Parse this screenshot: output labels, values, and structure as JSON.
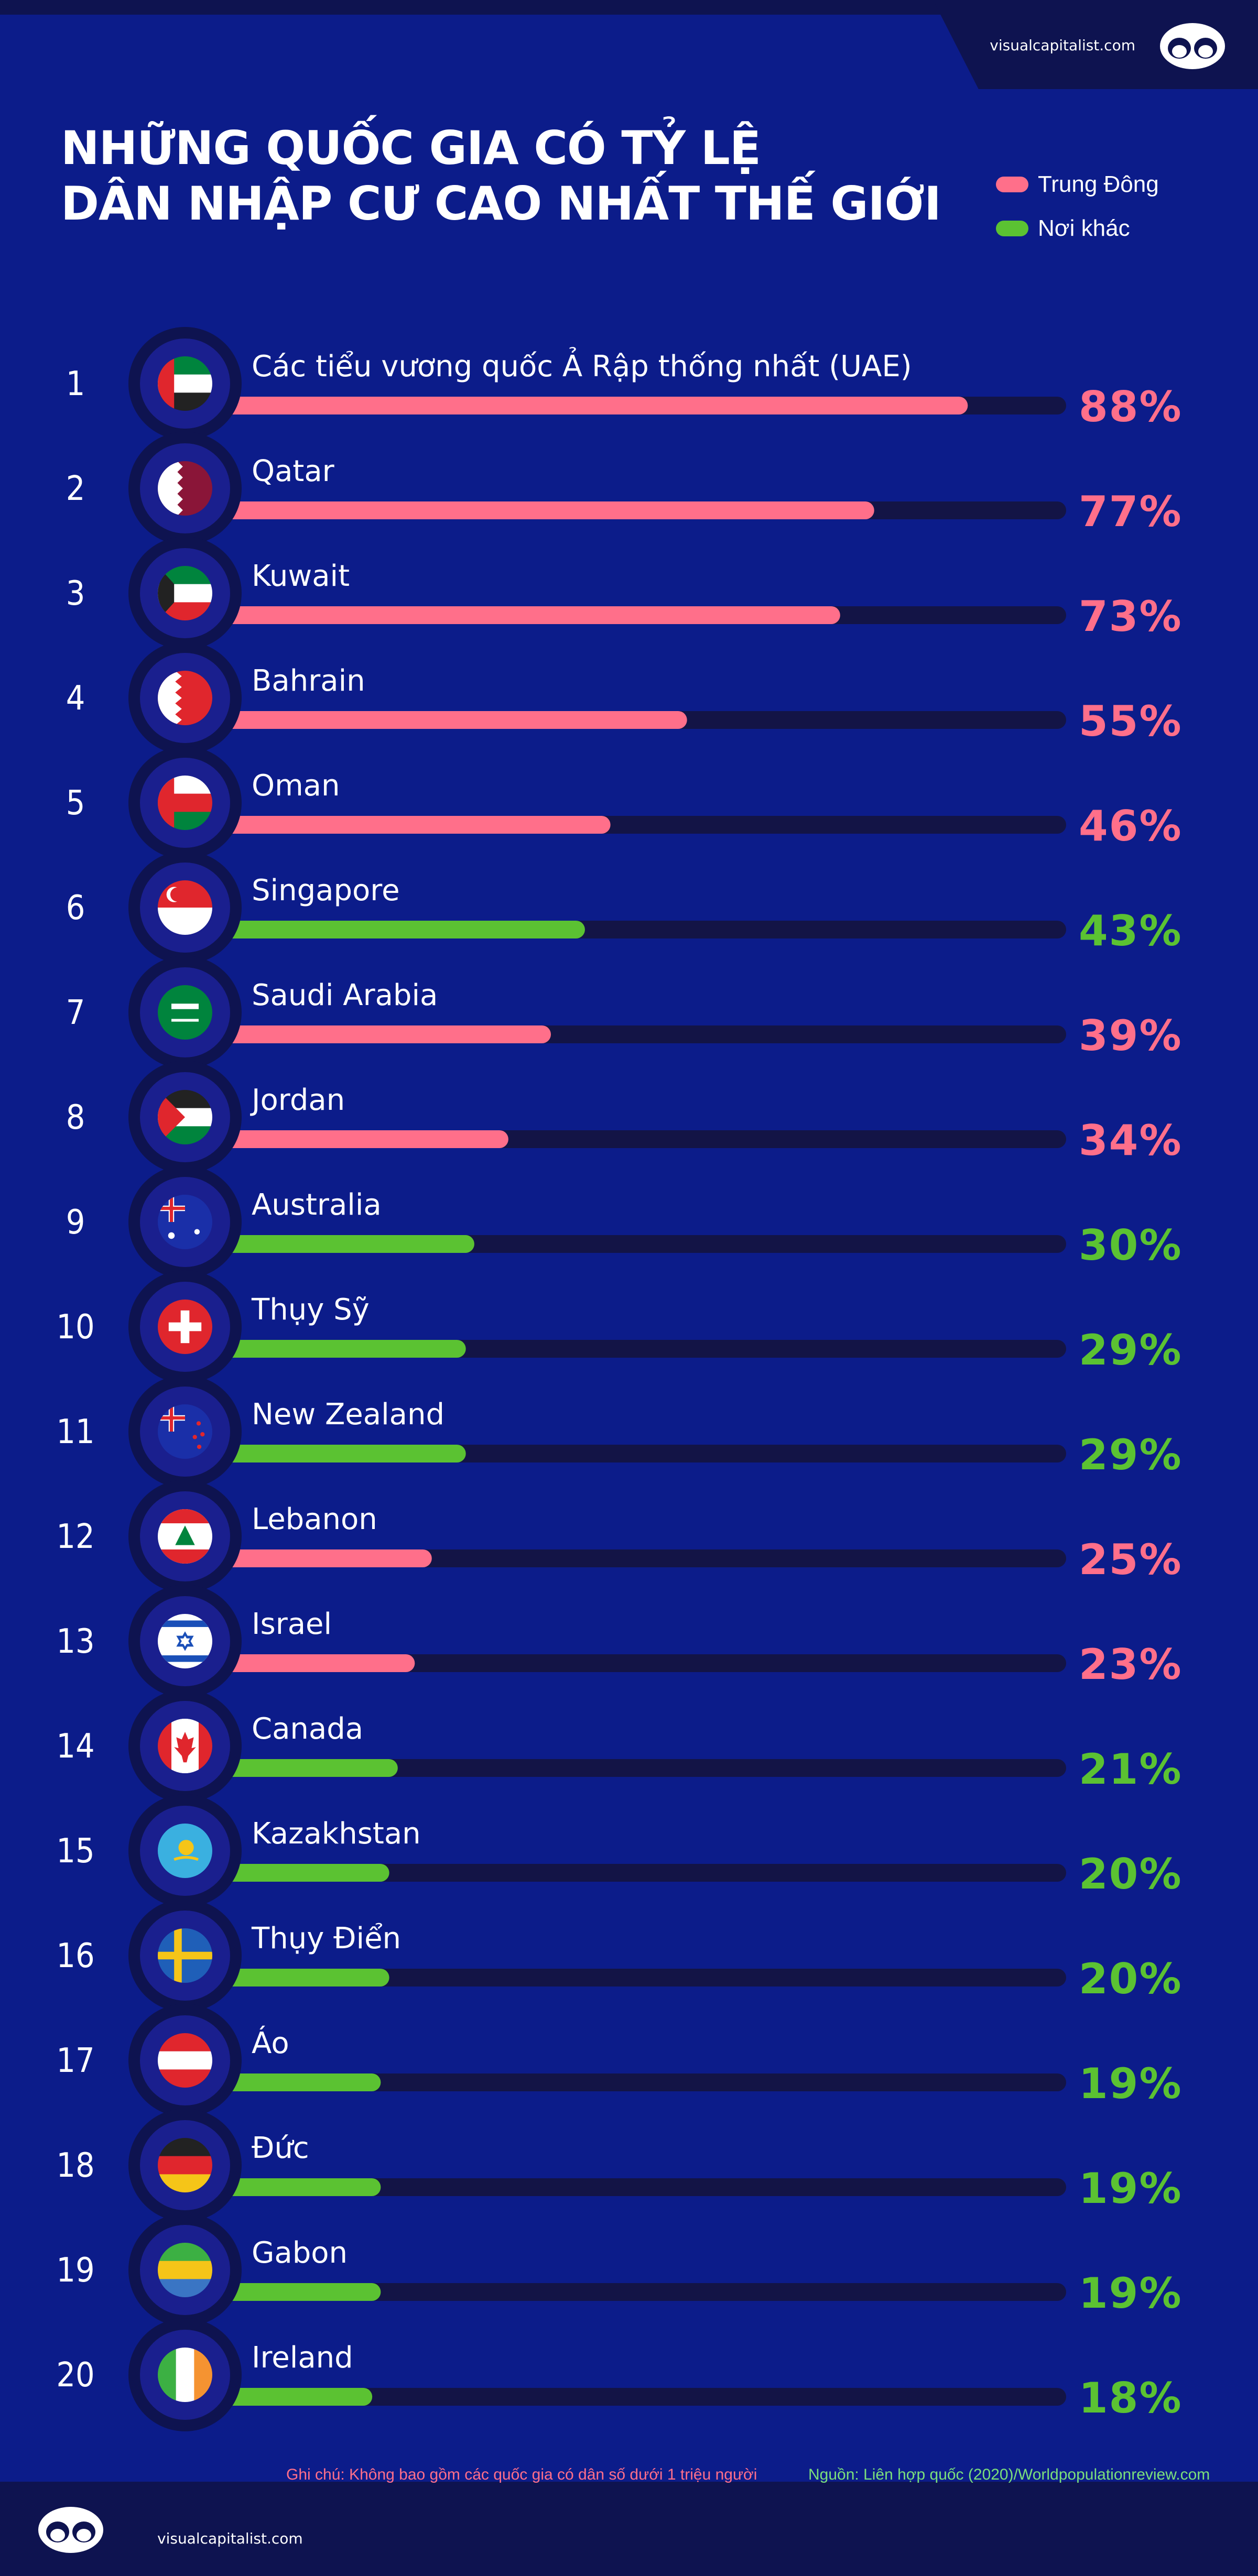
{
  "brand": {
    "site": "visualcapitalist.com"
  },
  "title": {
    "line1": "NHỮNG QUỐC GIA CÓ TỶ LỆ",
    "line2": "DÂN NHẬP CƯ CAO NHẤT THẾ GIỚI"
  },
  "legend": [
    {
      "label": "Trung Đông",
      "color": "#ff6f8a"
    },
    {
      "label": "Nơi khác",
      "color": "#5bc232"
    }
  ],
  "colors": {
    "middle_east": "#ff6f8a",
    "elsewhere": "#5bc232",
    "track": "#131446",
    "background": "#0c1c8a"
  },
  "chart_data": {
    "type": "bar",
    "orientation": "horizontal",
    "value_unit": "%",
    "xlim": [
      0,
      100
    ],
    "rows": [
      {
        "rank": "1",
        "country": "Các tiểu vương quốc Ả Rập thống nhất (UAE)",
        "value": 88,
        "label": "88%",
        "group": "Trung Đông",
        "flag": "uae-flag-icon"
      },
      {
        "rank": "2",
        "country": "Qatar",
        "value": 77,
        "label": "77%",
        "group": "Trung Đông",
        "flag": "qatar-flag-icon"
      },
      {
        "rank": "3",
        "country": "Kuwait",
        "value": 73,
        "label": "73%",
        "group": "Trung Đông",
        "flag": "kuwait-flag-icon"
      },
      {
        "rank": "4",
        "country": "Bahrain",
        "value": 55,
        "label": "55%",
        "group": "Trung Đông",
        "flag": "bahrain-flag-icon"
      },
      {
        "rank": "5",
        "country": "Oman",
        "value": 46,
        "label": "46%",
        "group": "Trung Đông",
        "flag": "oman-flag-icon"
      },
      {
        "rank": "6",
        "country": "Singapore",
        "value": 43,
        "label": "43%",
        "group": "Nơi khác",
        "flag": "singapore-flag-icon"
      },
      {
        "rank": "7",
        "country": "Saudi Arabia",
        "value": 39,
        "label": "39%",
        "group": "Trung Đông",
        "flag": "saudi-arabia-flag-icon"
      },
      {
        "rank": "8",
        "country": "Jordan",
        "value": 34,
        "label": "34%",
        "group": "Trung Đông",
        "flag": "jordan-flag-icon"
      },
      {
        "rank": "9",
        "country": "Australia",
        "value": 30,
        "label": "30%",
        "group": "Nơi khác",
        "flag": "australia-flag-icon"
      },
      {
        "rank": "10",
        "country": "Thụy Sỹ",
        "value": 29,
        "label": "29%",
        "group": "Nơi khác",
        "flag": "switzerland-flag-icon"
      },
      {
        "rank": "11",
        "country": "New Zealand",
        "value": 29,
        "label": "29%",
        "group": "Nơi khác",
        "flag": "new-zealand-flag-icon"
      },
      {
        "rank": "12",
        "country": "Lebanon",
        "value": 25,
        "label": "25%",
        "group": "Trung Đông",
        "flag": "lebanon-flag-icon"
      },
      {
        "rank": "13",
        "country": "Israel",
        "value": 23,
        "label": "23%",
        "group": "Trung Đông",
        "flag": "israel-flag-icon"
      },
      {
        "rank": "14",
        "country": "Canada",
        "value": 21,
        "label": "21%",
        "group": "Nơi khác",
        "flag": "canada-flag-icon"
      },
      {
        "rank": "15",
        "country": "Kazakhstan",
        "value": 20,
        "label": "20%",
        "group": "Nơi khác",
        "flag": "kazakhstan-flag-icon"
      },
      {
        "rank": "16",
        "country": "Thụy Điển",
        "value": 20,
        "label": "20%",
        "group": "Nơi khác",
        "flag": "sweden-flag-icon"
      },
      {
        "rank": "17",
        "country": "Áo",
        "value": 19,
        "label": "19%",
        "group": "Nơi khác",
        "flag": "austria-flag-icon"
      },
      {
        "rank": "18",
        "country": "Đức",
        "value": 19,
        "label": "19%",
        "group": "Nơi khác",
        "flag": "germany-flag-icon"
      },
      {
        "rank": "19",
        "country": "Gabon",
        "value": 19,
        "label": "19%",
        "group": "Nơi khác",
        "flag": "gabon-flag-icon"
      },
      {
        "rank": "20",
        "country": "Ireland",
        "value": 18,
        "label": "18%",
        "group": "Nơi khác",
        "flag": "ireland-flag-icon"
      }
    ]
  },
  "footer": {
    "note": "Ghi chú: Không bao gồm các quốc gia có dân số dưới 1 triệu người",
    "source": "Nguồn: Liên hợp quốc (2020)/Worldpopulationreview.com",
    "site": "visualcapitalist.com"
  }
}
